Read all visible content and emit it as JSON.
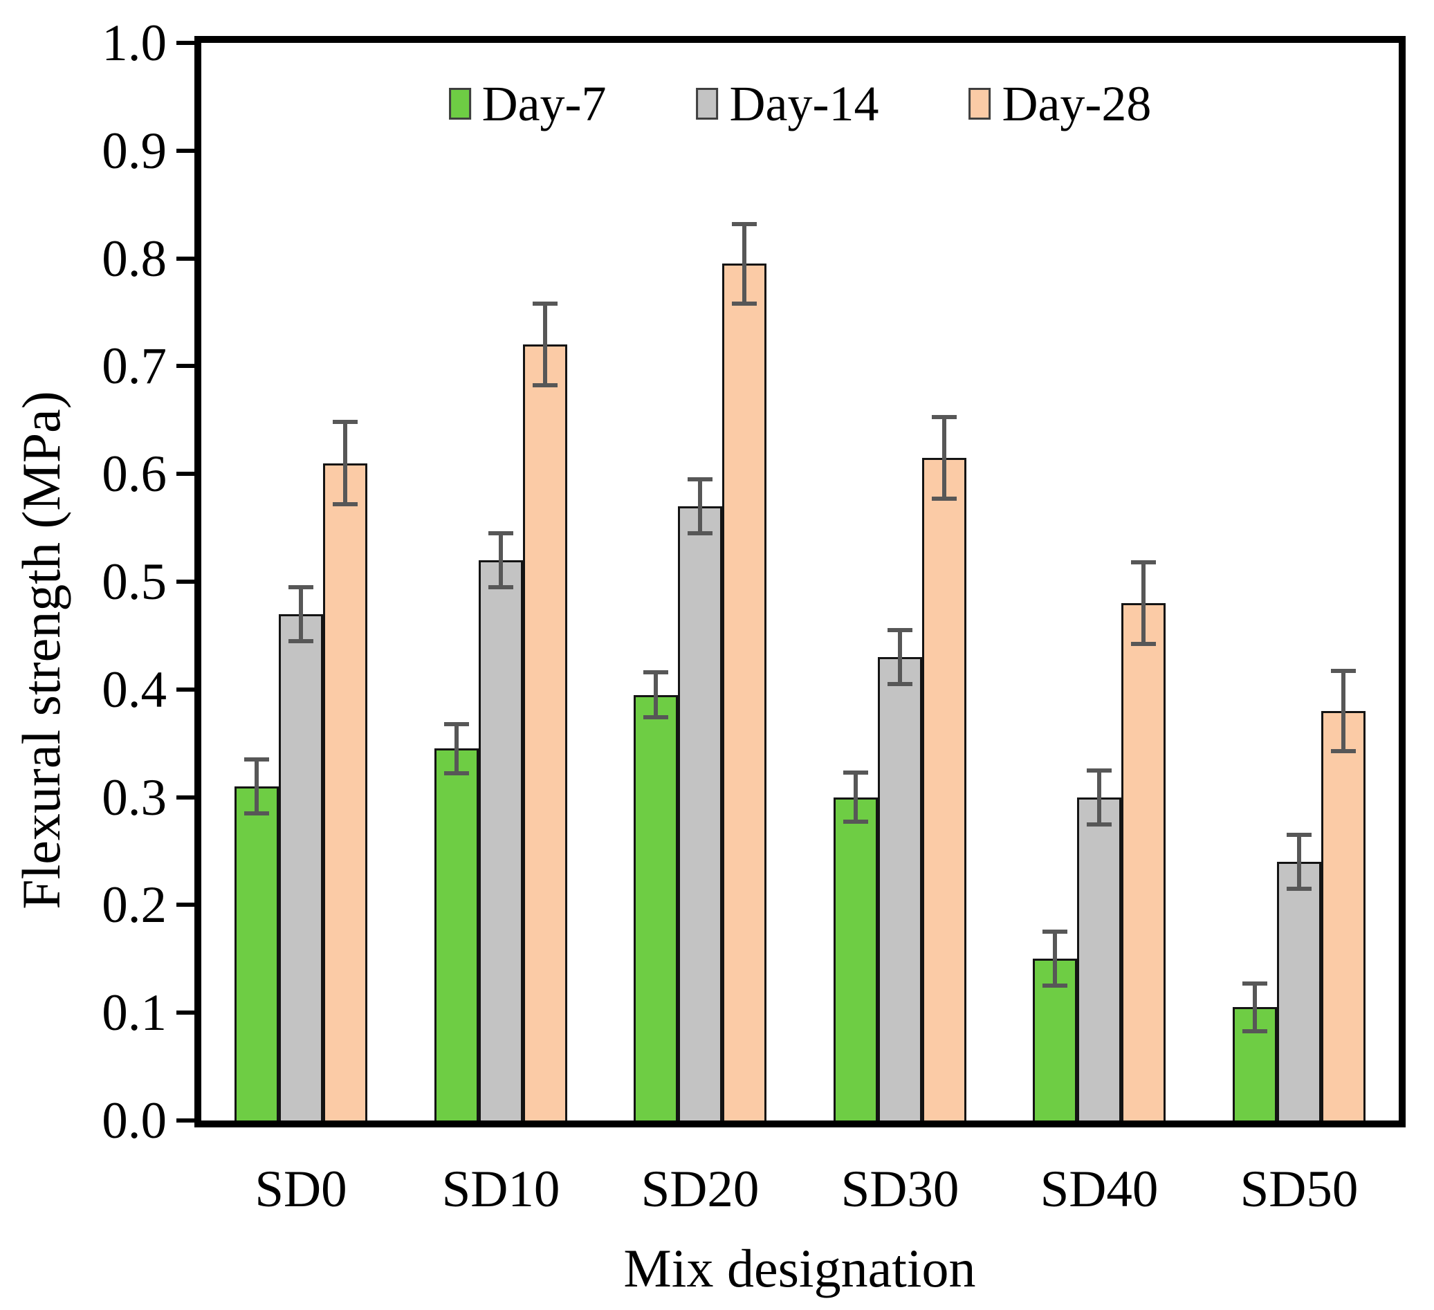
{
  "chart_data": {
    "type": "bar",
    "title": "",
    "xlabel": "Mix designation",
    "ylabel": "Flexural strength (MPa)",
    "categories": [
      "SD0",
      "SD10",
      "SD20",
      "SD30",
      "SD40",
      "SD50"
    ],
    "series": [
      {
        "name": "Day-7",
        "color": "#6ECD44",
        "values": [
          0.31,
          0.345,
          0.395,
          0.3,
          0.15,
          0.105
        ],
        "errors": [
          0.025,
          0.023,
          0.021,
          0.023,
          0.025,
          0.022
        ]
      },
      {
        "name": "Day-14",
        "color": "#C3C3C3",
        "values": [
          0.47,
          0.52,
          0.57,
          0.43,
          0.3,
          0.24
        ],
        "errors": [
          0.025,
          0.025,
          0.025,
          0.025,
          0.025,
          0.025
        ]
      },
      {
        "name": "Day-28",
        "color": "#FBCBA6",
        "values": [
          0.61,
          0.72,
          0.795,
          0.615,
          0.48,
          0.38
        ],
        "errors": [
          0.038,
          0.038,
          0.037,
          0.038,
          0.038,
          0.037
        ]
      }
    ],
    "ylim": [
      0.0,
      1.0
    ],
    "y_ticks": [
      "0.0",
      "0.1",
      "0.2",
      "0.3",
      "0.4",
      "0.5",
      "0.6",
      "0.7",
      "0.8",
      "0.9",
      "1.0"
    ],
    "grid": false,
    "legend_position": "top-center",
    "error_bar_color": "#575757",
    "bar_border_color": "#141414",
    "frame_color": "#000000"
  }
}
